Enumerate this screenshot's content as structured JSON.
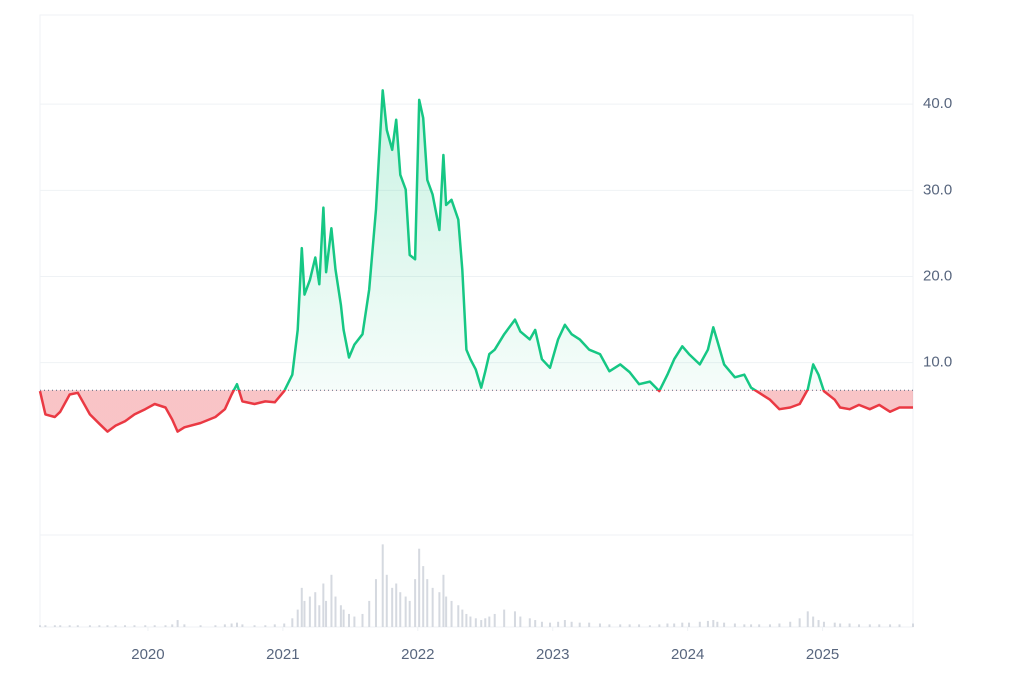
{
  "chart_data": {
    "type": "line",
    "x": [
      2019.2,
      2019.24,
      2019.31,
      2019.35,
      2019.42,
      2019.48,
      2019.57,
      2019.64,
      2019.7,
      2019.76,
      2019.83,
      2019.9,
      2019.98,
      2020.05,
      2020.13,
      2020.18,
      2020.22,
      2020.27,
      2020.39,
      2020.5,
      2020.57,
      2020.62,
      2020.66,
      2020.7,
      2020.79,
      2020.87,
      2020.94,
      2021.01,
      2021.07,
      2021.11,
      2021.14,
      2021.16,
      2021.2,
      2021.24,
      2021.27,
      2021.3,
      2021.32,
      2021.36,
      2021.39,
      2021.43,
      2021.45,
      2021.49,
      2021.53,
      2021.59,
      2021.64,
      2021.69,
      2021.74,
      2021.77,
      2021.81,
      2021.84,
      2021.87,
      2021.91,
      2021.94,
      2021.98,
      2022.01,
      2022.04,
      2022.07,
      2022.11,
      2022.16,
      2022.19,
      2022.21,
      2022.25,
      2022.3,
      2022.33,
      2022.36,
      2022.39,
      2022.43,
      2022.47,
      2022.5,
      2022.53,
      2022.57,
      2022.64,
      2022.72,
      2022.76,
      2022.83,
      2022.87,
      2022.92,
      2022.98,
      2023.04,
      2023.09,
      2023.14,
      2023.2,
      2023.27,
      2023.35,
      2023.42,
      2023.5,
      2023.57,
      2023.64,
      2023.72,
      2023.79,
      2023.85,
      2023.9,
      2023.96,
      2024.01,
      2024.09,
      2024.15,
      2024.19,
      2024.22,
      2024.27,
      2024.35,
      2024.42,
      2024.47,
      2024.53,
      2024.61,
      2024.68,
      2024.76,
      2024.83,
      2024.89,
      2024.93,
      2024.97,
      2025.01,
      2025.09,
      2025.13,
      2025.2,
      2025.27,
      2025.35,
      2025.42,
      2025.5,
      2025.57,
      2025.67
    ],
    "values": [
      6.7,
      4.0,
      3.7,
      4.3,
      6.3,
      6.5,
      4.0,
      2.9,
      2.0,
      2.7,
      3.2,
      4.0,
      4.6,
      5.2,
      4.8,
      3.4,
      2.0,
      2.5,
      3.0,
      3.7,
      4.6,
      6.3,
      7.5,
      5.5,
      5.2,
      5.5,
      5.4,
      6.7,
      8.6,
      13.8,
      23.3,
      17.9,
      19.6,
      22.2,
      19.1,
      28.0,
      20.5,
      25.6,
      20.8,
      16.7,
      13.8,
      10.6,
      12.1,
      13.3,
      18.5,
      27.8,
      41.6,
      37.0,
      34.7,
      38.2,
      31.8,
      30.1,
      22.5,
      22.0,
      40.5,
      38.4,
      31.2,
      29.5,
      25.4,
      34.1,
      28.3,
      28.9,
      26.6,
      20.8,
      11.5,
      10.4,
      9.2,
      7.1,
      9.0,
      11.0,
      11.5,
      13.3,
      15.0,
      13.6,
      12.7,
      13.8,
      10.4,
      9.4,
      12.7,
      14.4,
      13.3,
      12.7,
      11.5,
      11.0,
      9.0,
      9.8,
      8.9,
      7.5,
      7.8,
      6.7,
      8.6,
      10.4,
      11.9,
      11.0,
      9.8,
      11.5,
      14.1,
      12.5,
      9.8,
      8.3,
      8.6,
      7.1,
      6.5,
      5.7,
      4.6,
      4.8,
      5.2,
      6.9,
      9.8,
      8.6,
      6.7,
      5.7,
      4.8,
      4.6,
      5.1,
      4.6,
      5.1,
      4.3,
      4.8,
      4.8
    ],
    "volume": [
      2,
      2,
      2,
      2,
      2,
      2,
      2,
      2,
      2,
      2,
      2,
      2,
      2,
      2,
      2,
      3,
      8,
      3,
      2,
      2,
      3,
      4,
      5,
      3,
      2,
      2,
      3,
      4,
      10,
      20,
      45,
      30,
      35,
      40,
      25,
      50,
      30,
      60,
      35,
      25,
      20,
      15,
      12,
      15,
      30,
      55,
      95,
      60,
      45,
      50,
      40,
      35,
      30,
      55,
      90,
      70,
      55,
      45,
      40,
      60,
      35,
      30,
      25,
      20,
      15,
      12,
      10,
      8,
      10,
      12,
      15,
      20,
      18,
      12,
      10,
      8,
      6,
      5,
      6,
      8,
      6,
      5,
      5,
      4,
      3,
      3,
      3,
      3,
      2,
      3,
      4,
      4,
      5,
      5,
      6,
      7,
      8,
      6,
      5,
      4,
      3,
      3,
      3,
      3,
      4,
      6,
      10,
      18,
      12,
      8,
      6,
      5,
      4,
      4,
      3,
      3,
      3,
      3,
      3,
      4
    ],
    "volume_lim": [
      0,
      100
    ],
    "volume_color": "#d5d9e0",
    "reference_value": 6.8,
    "above_color": "#16c784",
    "below_color": "#ea3943",
    "xlim": [
      2019.2,
      2025.67
    ],
    "xticks": [
      2020,
      2021,
      2022,
      2023,
      2024,
      2025
    ],
    "ylim": [
      -10,
      50
    ],
    "yticks": [
      {
        "value": 10,
        "label": "10.0"
      },
      {
        "value": 20,
        "label": "20.0"
      },
      {
        "value": 30,
        "label": "30.0"
      },
      {
        "value": 40,
        "label": "40.0"
      }
    ],
    "grid": true
  }
}
